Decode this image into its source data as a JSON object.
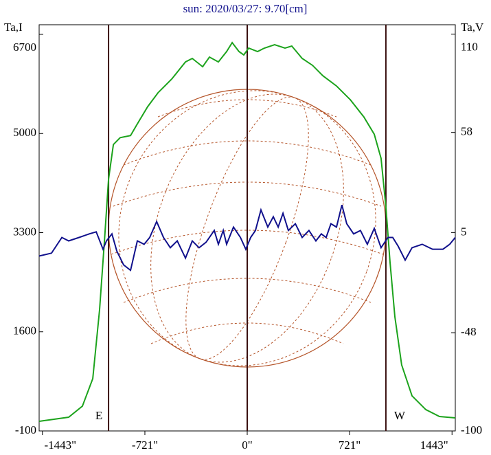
{
  "chart_data": {
    "type": "line",
    "title": "sun: 2020/03/27: 9.70[cm]",
    "ylabel": "Ta,I",
    "y2label": "Ta,V",
    "annotations": [
      "E",
      "W"
    ],
    "vertical_lines": [
      -977,
      0,
      977
    ],
    "xlim": [
      -1466,
      1466
    ],
    "xticks": [
      {
        "value": -1443,
        "label": "-1443\""
      },
      {
        "value": -721,
        "label": "-721\""
      },
      {
        "value": 0,
        "label": "0\""
      },
      {
        "value": 721,
        "label": "721\""
      },
      {
        "value": 1443,
        "label": "1443\""
      }
    ],
    "ylim": [
      -100,
      6865
    ],
    "yticks": [
      -100,
      1600,
      3300,
      5000,
      6700
    ],
    "y2lim": [
      -100,
      115
    ],
    "y2ticks": [
      -100,
      -48,
      5,
      58,
      110
    ],
    "series": [
      {
        "name": "Ta,I",
        "color": "#1ca31c",
        "x": [
          -1466,
          -1258,
          -1161,
          -1088,
          -1040,
          -1006,
          -977,
          -943,
          -895,
          -822,
          -774,
          -701,
          -629,
          -532,
          -435,
          -387,
          -314,
          -266,
          -203,
          -145,
          -106,
          -58,
          -24,
          10,
          73,
          121,
          193,
          266,
          314,
          387,
          460,
          532,
          629,
          726,
          822,
          895,
          943,
          977,
          1006,
          1040,
          1088,
          1161,
          1258,
          1354,
          1466
        ],
        "values": [
          65,
          136,
          325,
          797,
          1978,
          3158,
          4221,
          4811,
          4929,
          4965,
          5165,
          5461,
          5697,
          5933,
          6228,
          6287,
          6145,
          6311,
          6228,
          6405,
          6559,
          6405,
          6346,
          6464,
          6405,
          6464,
          6523,
          6464,
          6500,
          6287,
          6169,
          5992,
          5815,
          5579,
          5283,
          4988,
          4575,
          3749,
          2804,
          1860,
          1033,
          502,
          266,
          148,
          124
        ]
      },
      {
        "name": "Ta,V",
        "color": "#10108c",
        "axis": "y2",
        "x": [
          -1466,
          -1379,
          -1306,
          -1258,
          -1185,
          -1113,
          -1064,
          -1016,
          -992,
          -953,
          -919,
          -871,
          -822,
          -774,
          -726,
          -687,
          -638,
          -590,
          -542,
          -493,
          -435,
          -387,
          -339,
          -290,
          -232,
          -203,
          -169,
          -145,
          -97,
          -48,
          -10,
          24,
          58,
          97,
          145,
          184,
          218,
          252,
          290,
          339,
          387,
          435,
          484,
          522,
          556,
          590,
          629,
          667,
          701,
          750,
          798,
          846,
          895,
          943,
          992,
          1025,
          1064,
          1113,
          1161,
          1233,
          1306,
          1379,
          1427,
          1466
        ],
        "values": [
          -7.4,
          -5.9,
          2.4,
          0.6,
          2.4,
          4.3,
          5.4,
          -3.8,
          0.6,
          4.3,
          -4.8,
          -12.1,
          -15.0,
          0.6,
          -1.2,
          2.4,
          10.8,
          2.4,
          -3.0,
          0.6,
          -8.5,
          0.6,
          -3.0,
          -0.1,
          6.1,
          -1.2,
          6.1,
          -1.2,
          7.9,
          2.4,
          -3.8,
          2.4,
          6.1,
          17.0,
          7.9,
          13.4,
          7.9,
          15.2,
          6.1,
          9.7,
          2.4,
          6.1,
          0.6,
          4.3,
          2.4,
          9.7,
          7.9,
          19.6,
          9.7,
          4.3,
          6.1,
          -1.2,
          7.2,
          -3.0,
          2.4,
          2.4,
          -2.3,
          -9.6,
          -3.0,
          -1.2,
          -3.8,
          -3.8,
          -1.2,
          2.4
        ]
      }
    ]
  }
}
